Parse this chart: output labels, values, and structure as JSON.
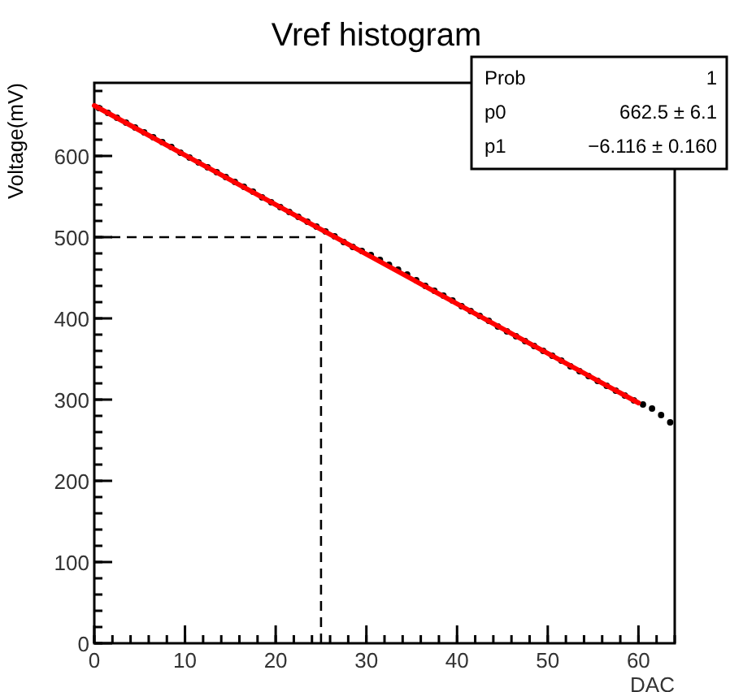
{
  "chart_data": {
    "type": "scatter",
    "title": "Vref histogram",
    "xlabel": "DAC",
    "ylabel": "Voltage(mV)",
    "xlim": [
      0,
      64
    ],
    "xticks": [
      0,
      10,
      20,
      30,
      40,
      50,
      60
    ],
    "ylim": [
      0,
      690
    ],
    "yticks": [
      0,
      100,
      200,
      300,
      400,
      500,
      600
    ],
    "grid": false,
    "series": [
      {
        "color": "#000000",
        "marker": "circle",
        "x": [
          0.5,
          1.5,
          2.5,
          3.5,
          4.5,
          5.5,
          6.5,
          7.5,
          8.5,
          9.5,
          10.5,
          11.5,
          12.5,
          13.5,
          14.5,
          15.5,
          16.5,
          17.5,
          18.5,
          19.5,
          20.5,
          21.5,
          22.5,
          23.5,
          24.5,
          25.5,
          26.5,
          27.5,
          28.5,
          29.5,
          30.5,
          31.5,
          32.5,
          33.5,
          34.5,
          35.5,
          36.5,
          37.5,
          38.5,
          39.5,
          40.5,
          41.5,
          42.5,
          43.5,
          44.5,
          45.5,
          46.5,
          47.5,
          48.5,
          49.5,
          50.5,
          51.5,
          52.5,
          53.5,
          54.5,
          55.5,
          56.5,
          57.5,
          58.5,
          59.5,
          60.5,
          61.5,
          62.5,
          63.5
        ],
        "values": [
          659,
          653,
          647,
          641,
          635,
          629,
          623,
          617,
          611,
          604,
          598,
          592,
          586,
          580,
          574,
          568,
          562,
          556,
          549,
          543,
          537,
          531,
          525,
          519,
          513,
          507,
          501,
          494,
          488,
          483,
          478,
          472,
          466,
          460,
          454,
          447,
          440,
          434,
          428,
          422,
          415,
          409,
          403,
          397,
          390,
          384,
          378,
          372,
          366,
          360,
          354,
          348,
          341,
          335,
          329,
          323,
          317,
          311,
          305,
          299,
          294,
          289,
          281,
          272
        ]
      },
      {
        "type": "line",
        "color": "#ff0000",
        "x": [
          0,
          60
        ],
        "values": [
          662,
          296
        ]
      }
    ],
    "ref_lines": [
      {
        "axis": "y",
        "value": 500,
        "color": "#000000",
        "line_style": "dashed"
      },
      {
        "axis": "x",
        "value": 25,
        "color": "#000000",
        "line_style": "dashed"
      }
    ],
    "annotations": [
      "Prob",
      "1",
      "p0",
      "662.5 ± 6.1",
      "p1",
      "−6.116 ± 0.160"
    ]
  }
}
